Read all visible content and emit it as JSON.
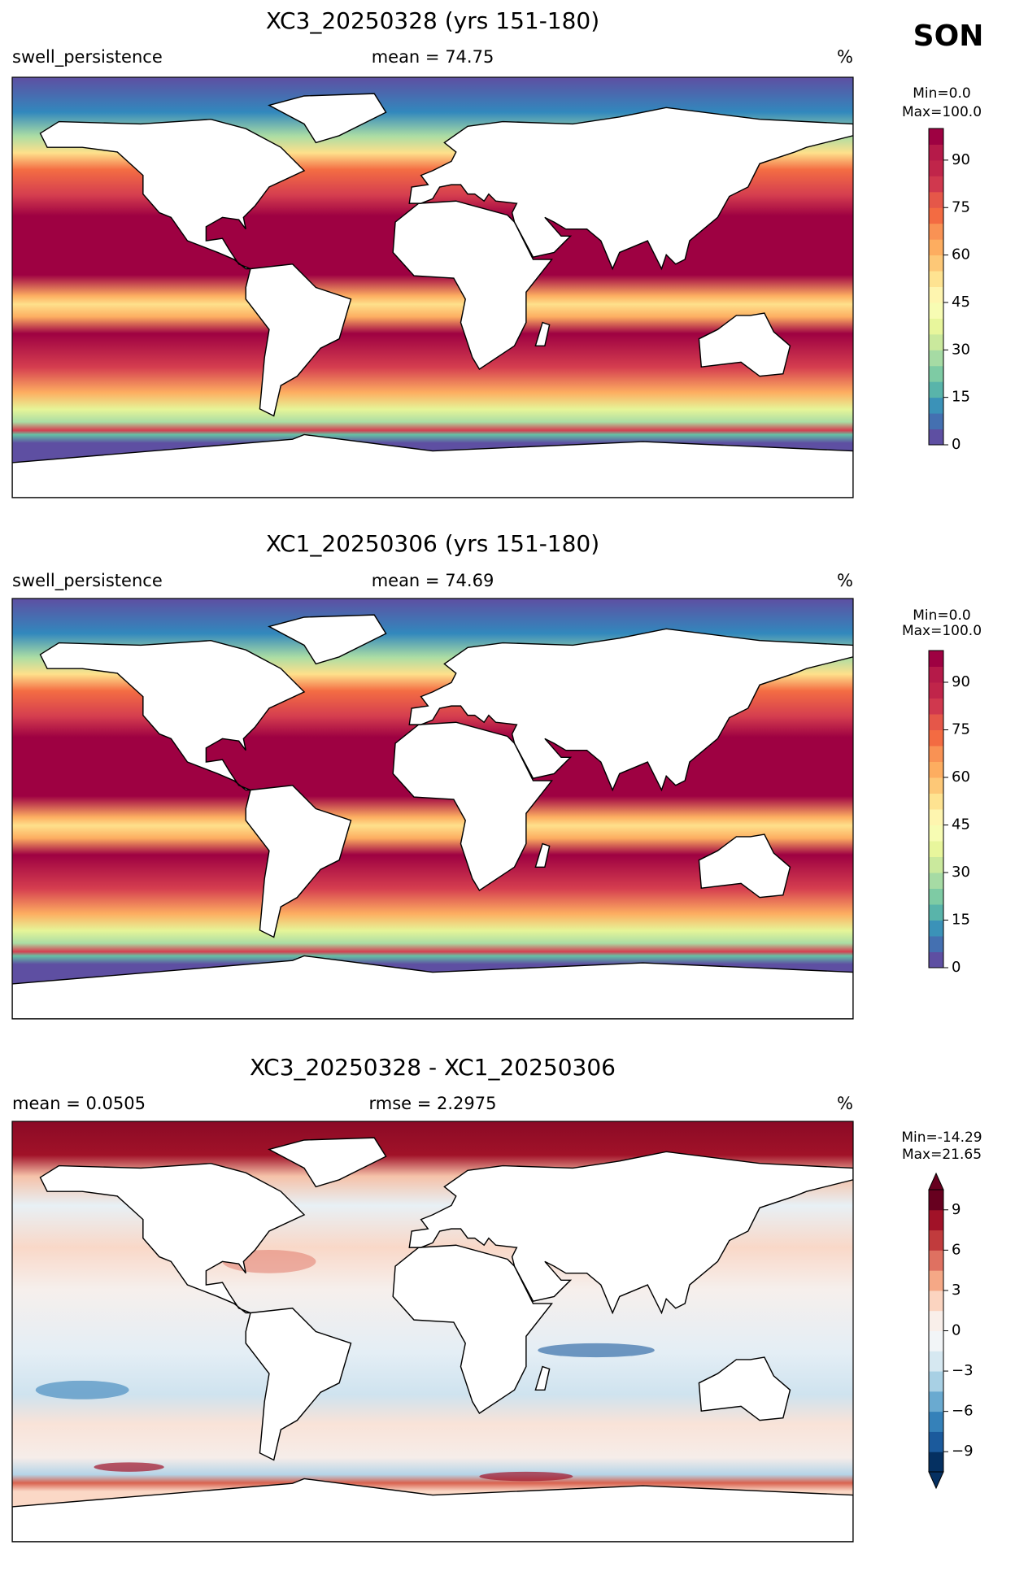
{
  "figure_label": "SON",
  "panels": [
    {
      "title": "XC3_20250328 (yrs 151-180)",
      "left_label": "swell_persistence",
      "center_label": "mean = 74.75",
      "right_label": "%",
      "colorbar": {
        "min_label": "Min=0.0",
        "max_label": "Max=100.0",
        "lim": [
          0,
          100
        ],
        "ticks": [
          0,
          15,
          30,
          45,
          60,
          75,
          90
        ],
        "extend": "neither",
        "colors": [
          "#5e4fa2",
          "#4470b1",
          "#3b92b8",
          "#59b4aa",
          "#7ecba4",
          "#a6dba4",
          "#cae99d",
          "#e8f69c",
          "#f7fcb3",
          "#fef5af",
          "#fee391",
          "#fdc877",
          "#fdad60",
          "#f99254",
          "#f36b42",
          "#e55749",
          "#d0384e",
          "#c0254a",
          "#b51a49",
          "#9e0142"
        ]
      }
    },
    {
      "title": "XC1_20250306 (yrs 151-180)",
      "left_label": "swell_persistence",
      "center_label": "mean = 74.69",
      "right_label": "%",
      "colorbar": {
        "min_label": "Min=0.0",
        "max_label": "Max=100.0",
        "lim": [
          0,
          100
        ],
        "ticks": [
          0,
          15,
          30,
          45,
          60,
          75,
          90
        ],
        "extend": "neither",
        "colors": [
          "#5e4fa2",
          "#4470b1",
          "#3b92b8",
          "#59b4aa",
          "#7ecba4",
          "#a6dba4",
          "#cae99d",
          "#e8f69c",
          "#f7fcb3",
          "#fef5af",
          "#fee391",
          "#fdc877",
          "#fdad60",
          "#f99254",
          "#f36b42",
          "#e55749",
          "#d0384e",
          "#c0254a",
          "#b51a49",
          "#9e0142"
        ]
      }
    },
    {
      "title": "XC3_20250328 - XC1_20250306",
      "left_label": "mean = 0.0505",
      "center_label": "rmse = 2.2975",
      "right_label": "%",
      "colorbar": {
        "min_label": "Min=-14.29",
        "max_label": "Max=21.65",
        "lim": [
          -10.5,
          10.5
        ],
        "ticks": [
          {
            "value": -9,
            "label": "−9"
          },
          {
            "value": -6,
            "label": "−6"
          },
          {
            "value": -3,
            "label": "−3"
          },
          0,
          3,
          6,
          9
        ],
        "extend": "both",
        "colors": [
          "#053061",
          "#1b5a9c",
          "#3581b9",
          "#6aaad0",
          "#a8d0e4",
          "#d6e8f1",
          "#f2f5f7",
          "#f9efea",
          "#fbd4c0",
          "#f5a886",
          "#df7161",
          "#c13b3d",
          "#a11228",
          "#67001f"
        ]
      }
    }
  ]
}
